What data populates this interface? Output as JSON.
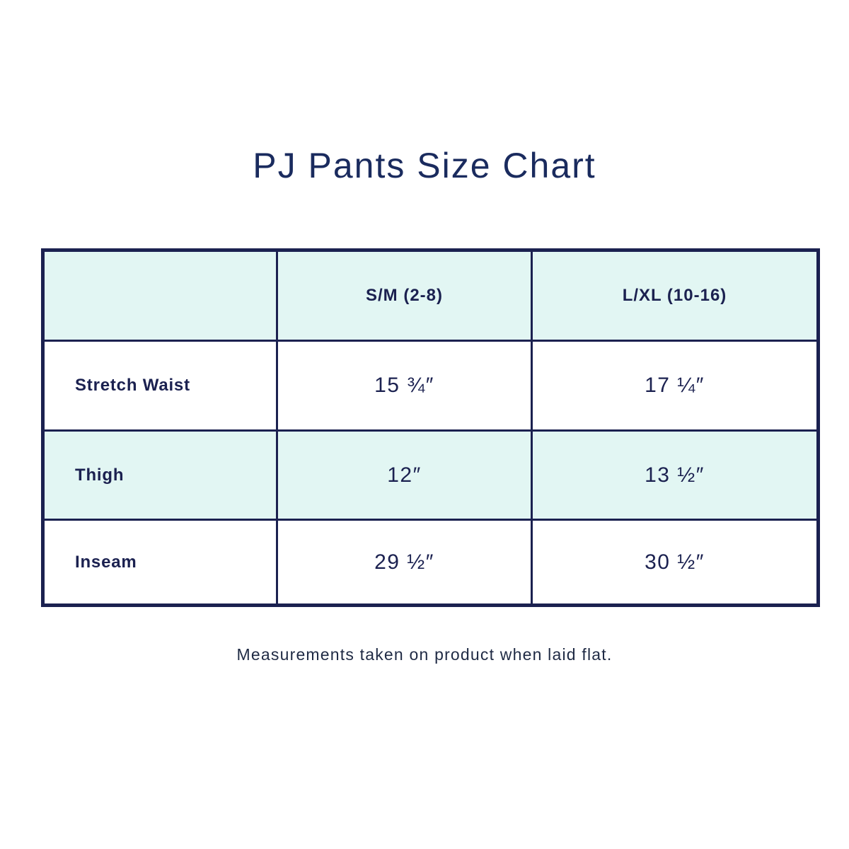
{
  "title": "PJ Pants Size Chart",
  "colors": {
    "border": "#1b2150",
    "header_bg": "#e2f6f3"
  },
  "table": {
    "headers": [
      "",
      "S/M (2-8)",
      "L/XL (10-16)"
    ],
    "rows": [
      {
        "label": "Stretch Waist",
        "values": [
          "15 ¾″",
          "17 ¼″"
        ]
      },
      {
        "label": "Thigh",
        "values": [
          "12″",
          "13 ½″"
        ]
      },
      {
        "label": "Inseam",
        "values": [
          "29 ½″",
          "30 ½″"
        ]
      }
    ]
  },
  "footnote": "Measurements taken on product when laid flat."
}
